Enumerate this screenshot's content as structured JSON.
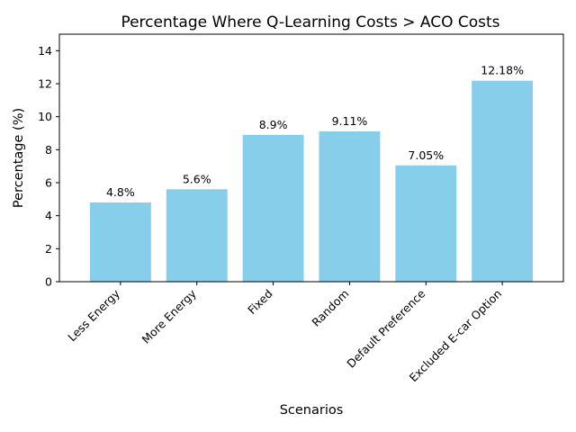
{
  "chart_data": {
    "type": "bar",
    "title": "Percentage Where Q-Learning Costs > ACO Costs",
    "xlabel": "Scenarios",
    "ylabel": "Percentage (%)",
    "categories": [
      "Less Energy",
      "More Energy",
      "Fixed",
      "Random",
      "Default Preference",
      "Excluded E-car Option"
    ],
    "values": [
      4.8,
      5.6,
      8.9,
      9.11,
      7.05,
      12.18
    ],
    "data_labels": [
      "4.8%",
      "5.6%",
      "8.9%",
      "9.11%",
      "7.05%",
      "12.18%"
    ],
    "ylim": [
      0,
      15
    ],
    "yticks": [
      "0",
      "2",
      "4",
      "6",
      "8",
      "10",
      "12",
      "14"
    ],
    "grid": false,
    "legend": "none",
    "bar_color": "#87CEEB",
    "x_tick_rotation": "45 degrees"
  }
}
